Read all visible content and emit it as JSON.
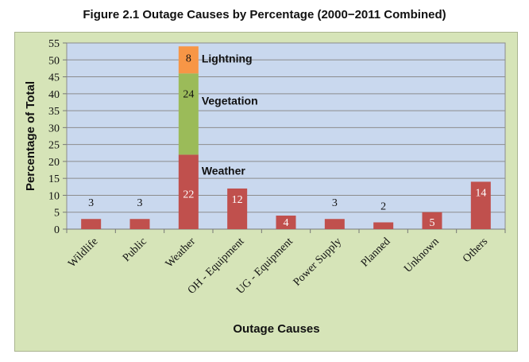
{
  "chart_data": {
    "type": "bar",
    "title": "Figure 2.1 Outage Causes by Percentage (2000−2011 Combined)",
    "xlabel": "Outage Causes",
    "ylabel": "Percentage of Total",
    "ylim": [
      0,
      55
    ],
    "yticks": [
      0,
      5,
      10,
      15,
      20,
      25,
      30,
      35,
      40,
      45,
      50,
      55
    ],
    "grid": true,
    "categories": [
      "Wildlife",
      "Public",
      "Weather",
      "OH - Equipment",
      "UG - Equipment",
      "Power Supply",
      "Planned",
      "Unknown",
      "Others"
    ],
    "values": [
      3,
      3,
      22,
      12,
      4,
      3,
      2,
      5,
      14
    ],
    "value_labels": [
      "3",
      "3",
      "22",
      "12",
      "4",
      "3",
      "2",
      "5",
      "14"
    ],
    "stack": {
      "category": "Weather",
      "segments": [
        {
          "name": "Weather",
          "value": 22,
          "label": "22",
          "color": "#c0504d"
        },
        {
          "name": "Vegetation",
          "value": 24,
          "label": "24",
          "color": "#9bbb59"
        },
        {
          "name": "Lightning",
          "value": 8,
          "label": "8",
          "color": "#f79646"
        }
      ]
    },
    "bar_color": "#c0504d",
    "plot_background": "#c9d8ee"
  }
}
